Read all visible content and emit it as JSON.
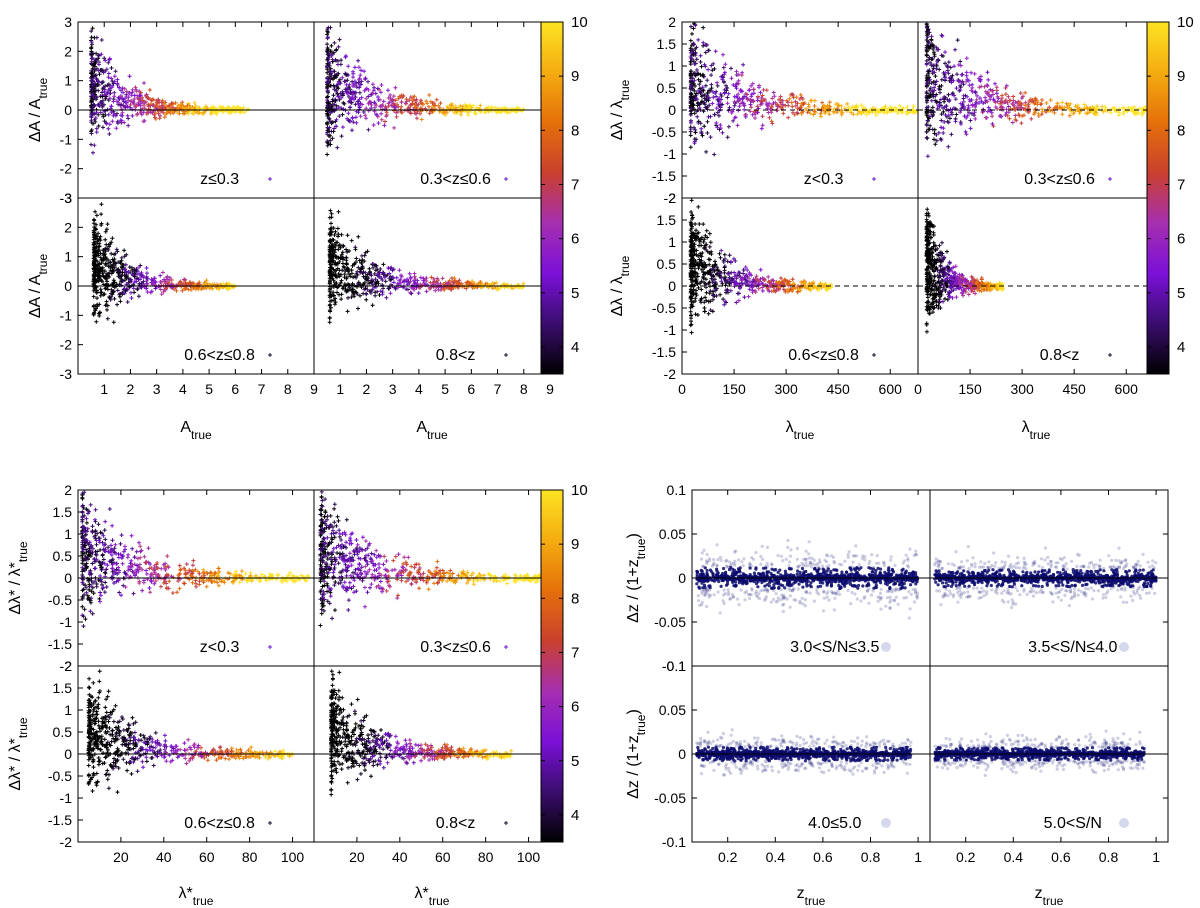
{
  "colorbar": {
    "min": 3.5,
    "max": 10,
    "ticks": [
      "4",
      "5",
      "6",
      "7",
      "8",
      "9",
      "10"
    ],
    "tick_values": [
      4,
      5,
      6,
      7,
      8,
      9,
      10
    ],
    "stops": [
      "#000000",
      "#3a0d6e",
      "#7b10d8",
      "#a62fb0",
      "#c9402e",
      "#e5700a",
      "#f4ac10",
      "#fde322"
    ]
  },
  "chart_data": [
    {
      "id": "A",
      "type": "scatter",
      "ylim": [
        -3,
        3
      ],
      "xlim": [
        0,
        9
      ],
      "yticks": [
        "3",
        "2",
        "1",
        "0",
        "-1",
        "-2",
        "-3"
      ],
      "ytick_values": [
        3,
        2,
        1,
        0,
        -1,
        -2,
        -3
      ],
      "xticks": [
        "1",
        "2",
        "3",
        "4",
        "5",
        "6",
        "7",
        "8",
        "9"
      ],
      "xtick_values": [
        1,
        2,
        3,
        4,
        5,
        6,
        7,
        8,
        9
      ],
      "ylabel_base": "ΔA / A",
      "ylabel_sub": "true",
      "xlabel_base": "A",
      "xlabel_sub": "true",
      "reference_line": "solid",
      "panels": [
        {
          "label": "z≤0.3",
          "xmax": 6.5,
          "xmin": 0.5,
          "spread": 2.4
        },
        {
          "label": "0.3<z≤0.6",
          "xmax": 8.0,
          "xmin": 0.5,
          "spread": 2.6
        },
        {
          "label": "0.6<z≤0.8",
          "xmax": 6.0,
          "xmin": 0.6,
          "spread": 2.4
        },
        {
          "label": "0.8<z",
          "xmax": 8.0,
          "xmin": 0.6,
          "spread": 2.2
        }
      ]
    },
    {
      "id": "lambda",
      "type": "scatter",
      "ylim": [
        -2,
        2
      ],
      "xlim": [
        0,
        680
      ],
      "yticks": [
        "2",
        "1.5",
        "1",
        "0.5",
        "0",
        "-0.5",
        "-1",
        "-1.5",
        "-2"
      ],
      "ytick_values": [
        2,
        1.5,
        1,
        0.5,
        0,
        -0.5,
        -1,
        -1.5,
        -2
      ],
      "xticks": [
        "0",
        "150",
        "300",
        "450",
        "600"
      ],
      "xtick_values": [
        0,
        150,
        300,
        450,
        600
      ],
      "ylabel_base": "Δλ / λ",
      "ylabel_sub": "true",
      "xlabel_base": "λ",
      "xlabel_sub": "true",
      "reference_line": "dashed",
      "panels": [
        {
          "label": "z<0.3",
          "xmax": 680,
          "xmin": 25,
          "spread": 1.9
        },
        {
          "label": "0.3<z≤0.6",
          "xmax": 680,
          "xmin": 25,
          "spread": 1.9
        },
        {
          "label": "0.6<z≤0.8",
          "xmax": 430,
          "xmin": 25,
          "spread": 1.8
        },
        {
          "label": "0.8<z",
          "xmax": 245,
          "xmin": 25,
          "spread": 1.8
        }
      ]
    },
    {
      "id": "lambda_star",
      "type": "scatter",
      "ylim": [
        -2,
        2
      ],
      "xlim": [
        0,
        110
      ],
      "yticks": [
        "2",
        "1.5",
        "1",
        "0.5",
        "0",
        "-0.5",
        "-1",
        "-1.5",
        "-2"
      ],
      "ytick_values": [
        2,
        1.5,
        1,
        0.5,
        0,
        -0.5,
        -1,
        -1.5,
        -2
      ],
      "xticks": [
        "20",
        "40",
        "60",
        "80",
        "100"
      ],
      "xtick_values": [
        20,
        40,
        60,
        80,
        100
      ],
      "ylabel_base": "Δλ* / λ*",
      "ylabel_sub": "true",
      "xlabel_base": "λ*",
      "xlabel_sub": "true",
      "reference_line": "solid",
      "panels": [
        {
          "label": "z<0.3",
          "xmax": 108,
          "xmin": 2,
          "spread": 1.8
        },
        {
          "label": "0.3<z≤0.6",
          "xmax": 108,
          "xmin": 3,
          "spread": 1.8
        },
        {
          "label": "0.6<z≤0.8",
          "xmax": 100,
          "xmin": 5,
          "spread": 1.6
        },
        {
          "label": "0.8<z",
          "xmax": 92,
          "xmin": 8,
          "spread": 1.6
        }
      ]
    },
    {
      "id": "photoz",
      "type": "scatter",
      "ylim": [
        -0.1,
        0.1
      ],
      "xlim": [
        0.05,
        1.05
      ],
      "yticks": [
        "0.1",
        "0.05",
        "0",
        "-0.05",
        "-0.1"
      ],
      "ytick_values": [
        0.1,
        0.05,
        0,
        -0.05,
        -0.1
      ],
      "xticks": [
        "0.2",
        "0.4",
        "0.6",
        "0.8",
        "1"
      ],
      "xtick_values": [
        0.2,
        0.4,
        0.6,
        0.8,
        1.0
      ],
      "ylabel_base": "Δz / (1+z",
      "ylabel_sub": "true",
      "ylabel_end": ")",
      "xlabel_base": "z",
      "xlabel_sub": "true",
      "reference_line": "solid",
      "marker_color": "#0a0a6e",
      "panels": [
        {
          "label": "3.0<S/N≤3.5",
          "xmax": 1.0,
          "xmin": 0.07,
          "spread": 0.03
        },
        {
          "label": "3.5<S/N≤4.0",
          "xmax": 1.0,
          "xmin": 0.07,
          "spread": 0.025
        },
        {
          "label": "4.0≤5.0",
          "xmax": 0.97,
          "xmin": 0.07,
          "spread": 0.02
        },
        {
          "label": "5.0<S/N",
          "xmax": 0.95,
          "xmin": 0.07,
          "spread": 0.018
        }
      ]
    }
  ]
}
